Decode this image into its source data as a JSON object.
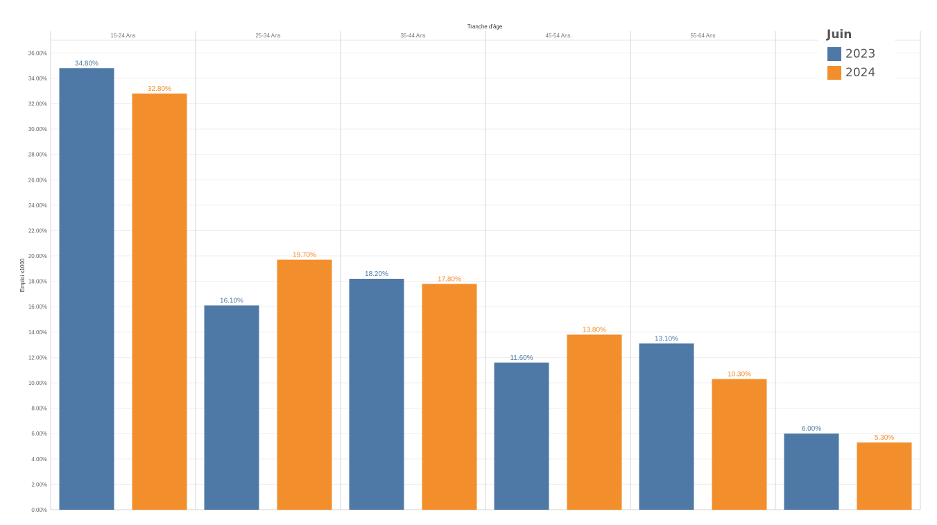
{
  "chart_data": {
    "type": "bar",
    "column_header": "Tranche d'âge",
    "ylabel": "Emploi x1000",
    "categories": [
      "15-24 Ans",
      "25-34 Ans",
      "35-44 Ans",
      "45-54 Ans",
      "55-64 Ans",
      ""
    ],
    "series": [
      {
        "name": "2023",
        "color": "#4e79a7",
        "values": [
          34.8,
          16.1,
          18.2,
          11.6,
          13.1,
          6.0
        ],
        "labels": [
          "34.80%",
          "16.10%",
          "18.20%",
          "11.60%",
          "13.10%",
          "6.00%"
        ]
      },
      {
        "name": "2024",
        "color": "#f28e2b",
        "values": [
          32.8,
          19.7,
          17.8,
          13.8,
          10.3,
          5.3
        ],
        "labels": [
          "32.80%",
          "19.70%",
          "17.80%",
          "13.80%",
          "10.30%",
          "5.30%"
        ]
      }
    ],
    "ylim": [
      0,
      37
    ],
    "yticks": [
      0,
      2,
      4,
      6,
      8,
      10,
      12,
      14,
      16,
      18,
      20,
      22,
      24,
      26,
      28,
      30,
      32,
      34,
      36
    ],
    "ytick_labels": [
      "0.00%",
      "2.00%",
      "4.00%",
      "6.00%",
      "8.00%",
      "10.00%",
      "12.00%",
      "14.00%",
      "16.00%",
      "18.00%",
      "20.00%",
      "22.00%",
      "24.00%",
      "26.00%",
      "28.00%",
      "30.00%",
      "32.00%",
      "34.00%",
      "36.00%"
    ],
    "grid": true,
    "legend": {
      "title": "Juin",
      "placement": "top-right",
      "entries": [
        "2023",
        "2024"
      ]
    }
  }
}
